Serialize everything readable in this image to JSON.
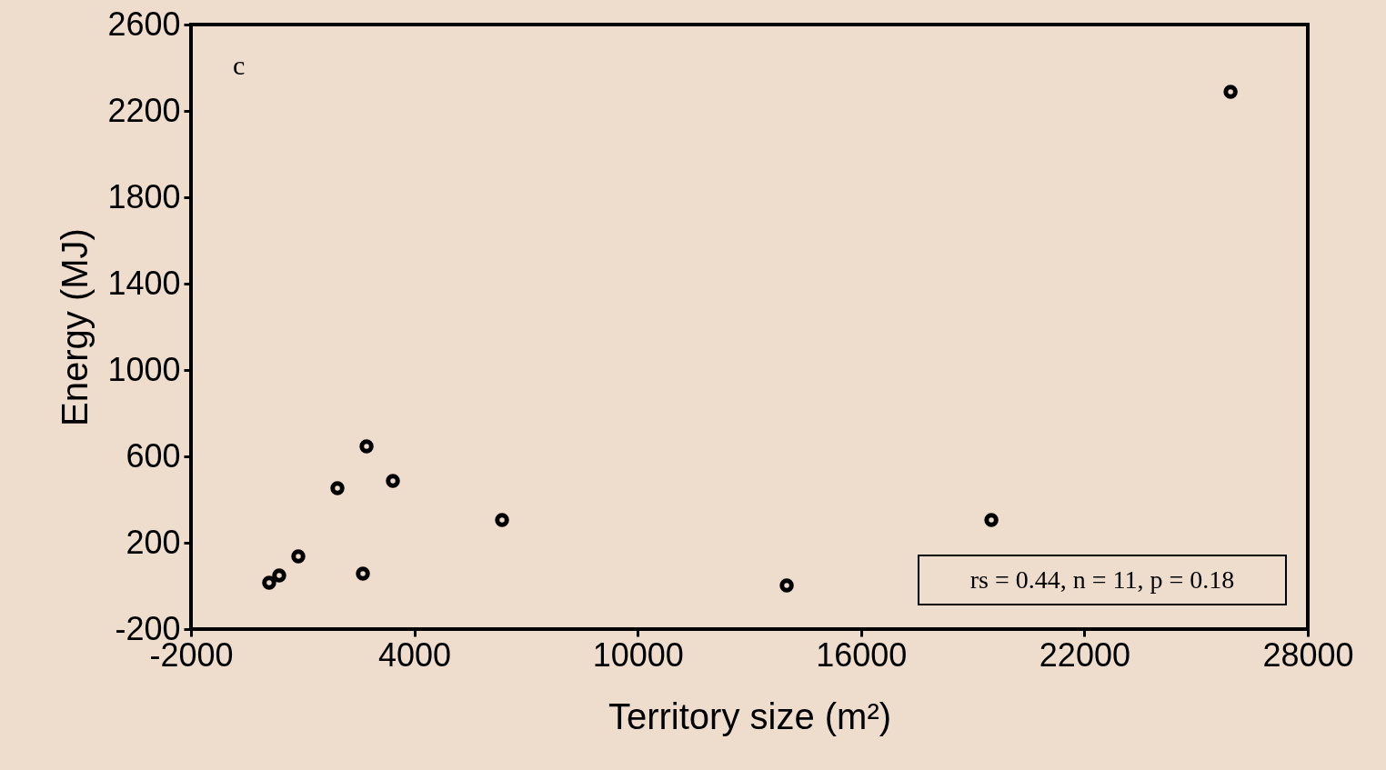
{
  "chart_data": {
    "type": "scatter",
    "xlabel": "Territory size (m²)",
    "ylabel": "Energy (MJ)",
    "x": [
      100,
      370,
      883,
      1934,
      2618,
      2716,
      3424,
      6356,
      14003,
      19500,
      25926
    ],
    "series": [
      {
        "color": "#000000",
        "values": [
          15,
          48,
          137,
          453,
          57,
          646,
          486,
          305,
          2,
          305,
          2288
        ]
      }
    ],
    "xlim": [
      -2000,
      28000
    ],
    "xticks": [
      -2000,
      4000,
      10000,
      16000,
      22000,
      28000
    ],
    "ylim": [
      -200,
      2600
    ],
    "yticks": [
      -200,
      200,
      600,
      1000,
      1400,
      1800,
      2200,
      2600
    ],
    "grid": false,
    "marker": "circle",
    "annotations": [
      "c",
      "rs = 0.44, n = 11, p = 0.18"
    ]
  }
}
